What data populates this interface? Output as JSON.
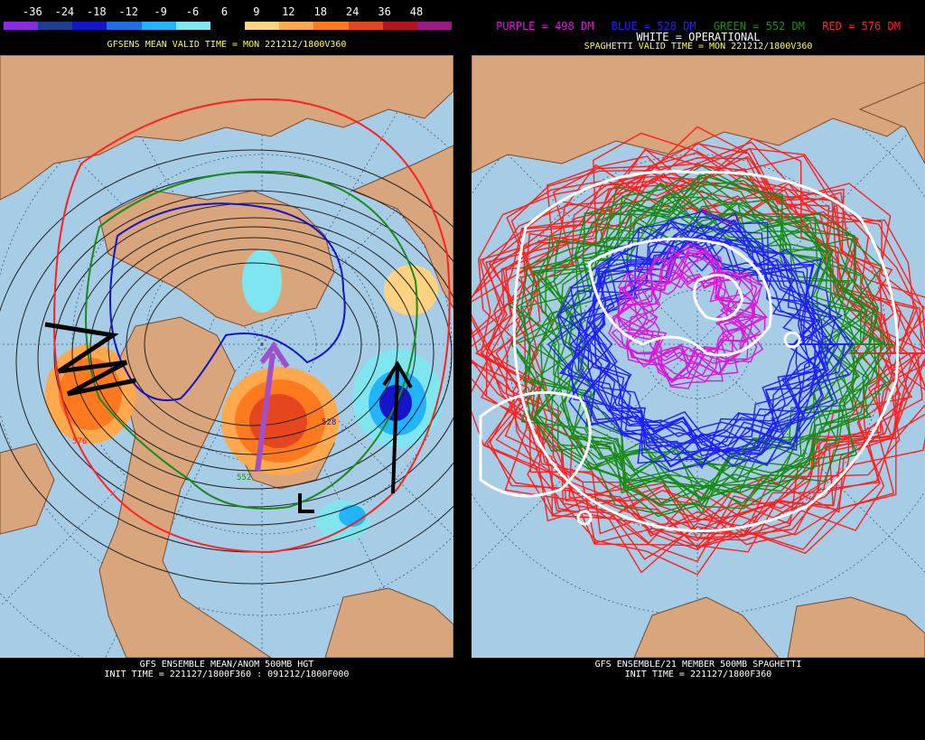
{
  "left_panel": {
    "colorbar": {
      "labels": [
        "-36",
        "-24",
        "-18",
        "-12",
        "-9",
        "-6",
        "6",
        "9",
        "12",
        "18",
        "24",
        "36",
        "48"
      ],
      "colors": [
        "#8a2be2",
        "#1d3f8f",
        "#1414c8",
        "#1e6ee6",
        "#21b4ff",
        "#7fe6f0",
        "#000000",
        "#ffd27f",
        "#ffa84c",
        "#ff7a1e",
        "#e6461e",
        "#b4141e",
        "#9a1a8a"
      ]
    },
    "header": "GFSENS MEAN VALID TIME = MON 221212/1800V360",
    "footer_line1": "GFS ENSEMBLE MEAN/ANOM 500MB HGT",
    "footer_line2": "INIT TIME = 221127/1800F360 : 091212/1800F000",
    "contour_labels": [
      "528",
      "552",
      "576"
    ]
  },
  "right_panel": {
    "legend": [
      {
        "text": "PURPLE = 498 DM",
        "color": "#d81ad8"
      },
      {
        "text": "BLUE = 528 DM",
        "color": "#2020ff"
      },
      {
        "text": "GREEN = 552 DM",
        "color": "#1a8a1a"
      },
      {
        "text": "RED = 576 DM",
        "color": "#ff2020"
      }
    ],
    "white_label": "WHITE = OPERATIONAL",
    "header": "SPAGHETTI VALID TIME = MON 221212/1800V360",
    "footer_line1": "GFS ENSEMBLE/21 MEMBER 500MB SPAGHETTI",
    "footer_line2": "INIT TIME = 221127/1800F360"
  },
  "colors": {
    "ocean": "#a7cce6",
    "land": "#d9a57c",
    "coast": "#7a4a2a",
    "header_text": "#ffff40",
    "footer_text": "#ffffff"
  }
}
